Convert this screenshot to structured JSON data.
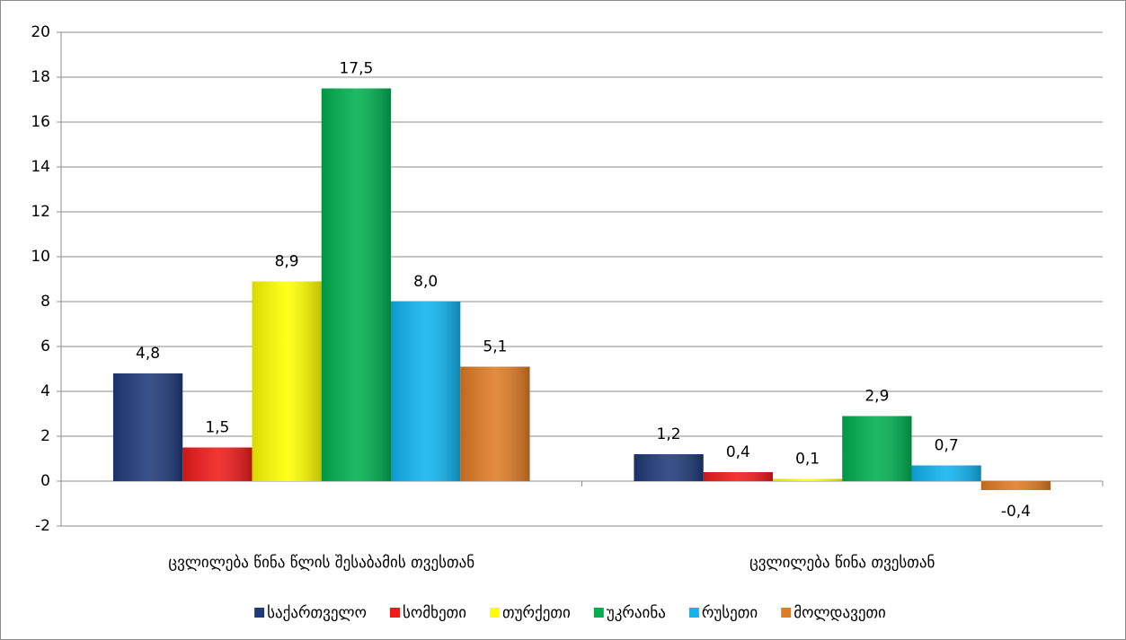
{
  "chart_data": {
    "type": "bar",
    "categories": [
      "ცვლილება წინა წლის შესაბამის თვესთან",
      "ცვლილება წინა თვესთან"
    ],
    "series": [
      {
        "name": "საქართველო",
        "color": "#1f3a7a",
        "values": [
          4.8,
          1.2
        ],
        "value_labels": [
          "4,8",
          "1,2"
        ]
      },
      {
        "name": "სომხეთი",
        "color": "#f01a1a",
        "values": [
          1.5,
          0.4
        ],
        "value_labels": [
          "1,5",
          "0,4"
        ]
      },
      {
        "name": "თურქეთი",
        "color": "#ffff00",
        "values": [
          8.9,
          0.1
        ],
        "value_labels": [
          "8,9",
          "0,1"
        ]
      },
      {
        "name": "უკრაინა",
        "color": "#00b050",
        "values": [
          17.5,
          2.9
        ],
        "value_labels": [
          "17,5",
          "2,9"
        ]
      },
      {
        "name": "რუსეთი",
        "color": "#10b4f0",
        "values": [
          8.0,
          0.7
        ],
        "value_labels": [
          "8,0",
          "0,7"
        ]
      },
      {
        "name": "მოლდავეთი",
        "color": "#e07b24",
        "values": [
          5.1,
          -0.4
        ],
        "value_labels": [
          "5,1",
          "-0,4"
        ]
      }
    ],
    "ylim": [
      -2,
      20
    ],
    "yticks": [
      -2,
      0,
      2,
      4,
      6,
      8,
      10,
      12,
      14,
      16,
      18,
      20
    ],
    "grid": true,
    "legend": "bottom"
  }
}
